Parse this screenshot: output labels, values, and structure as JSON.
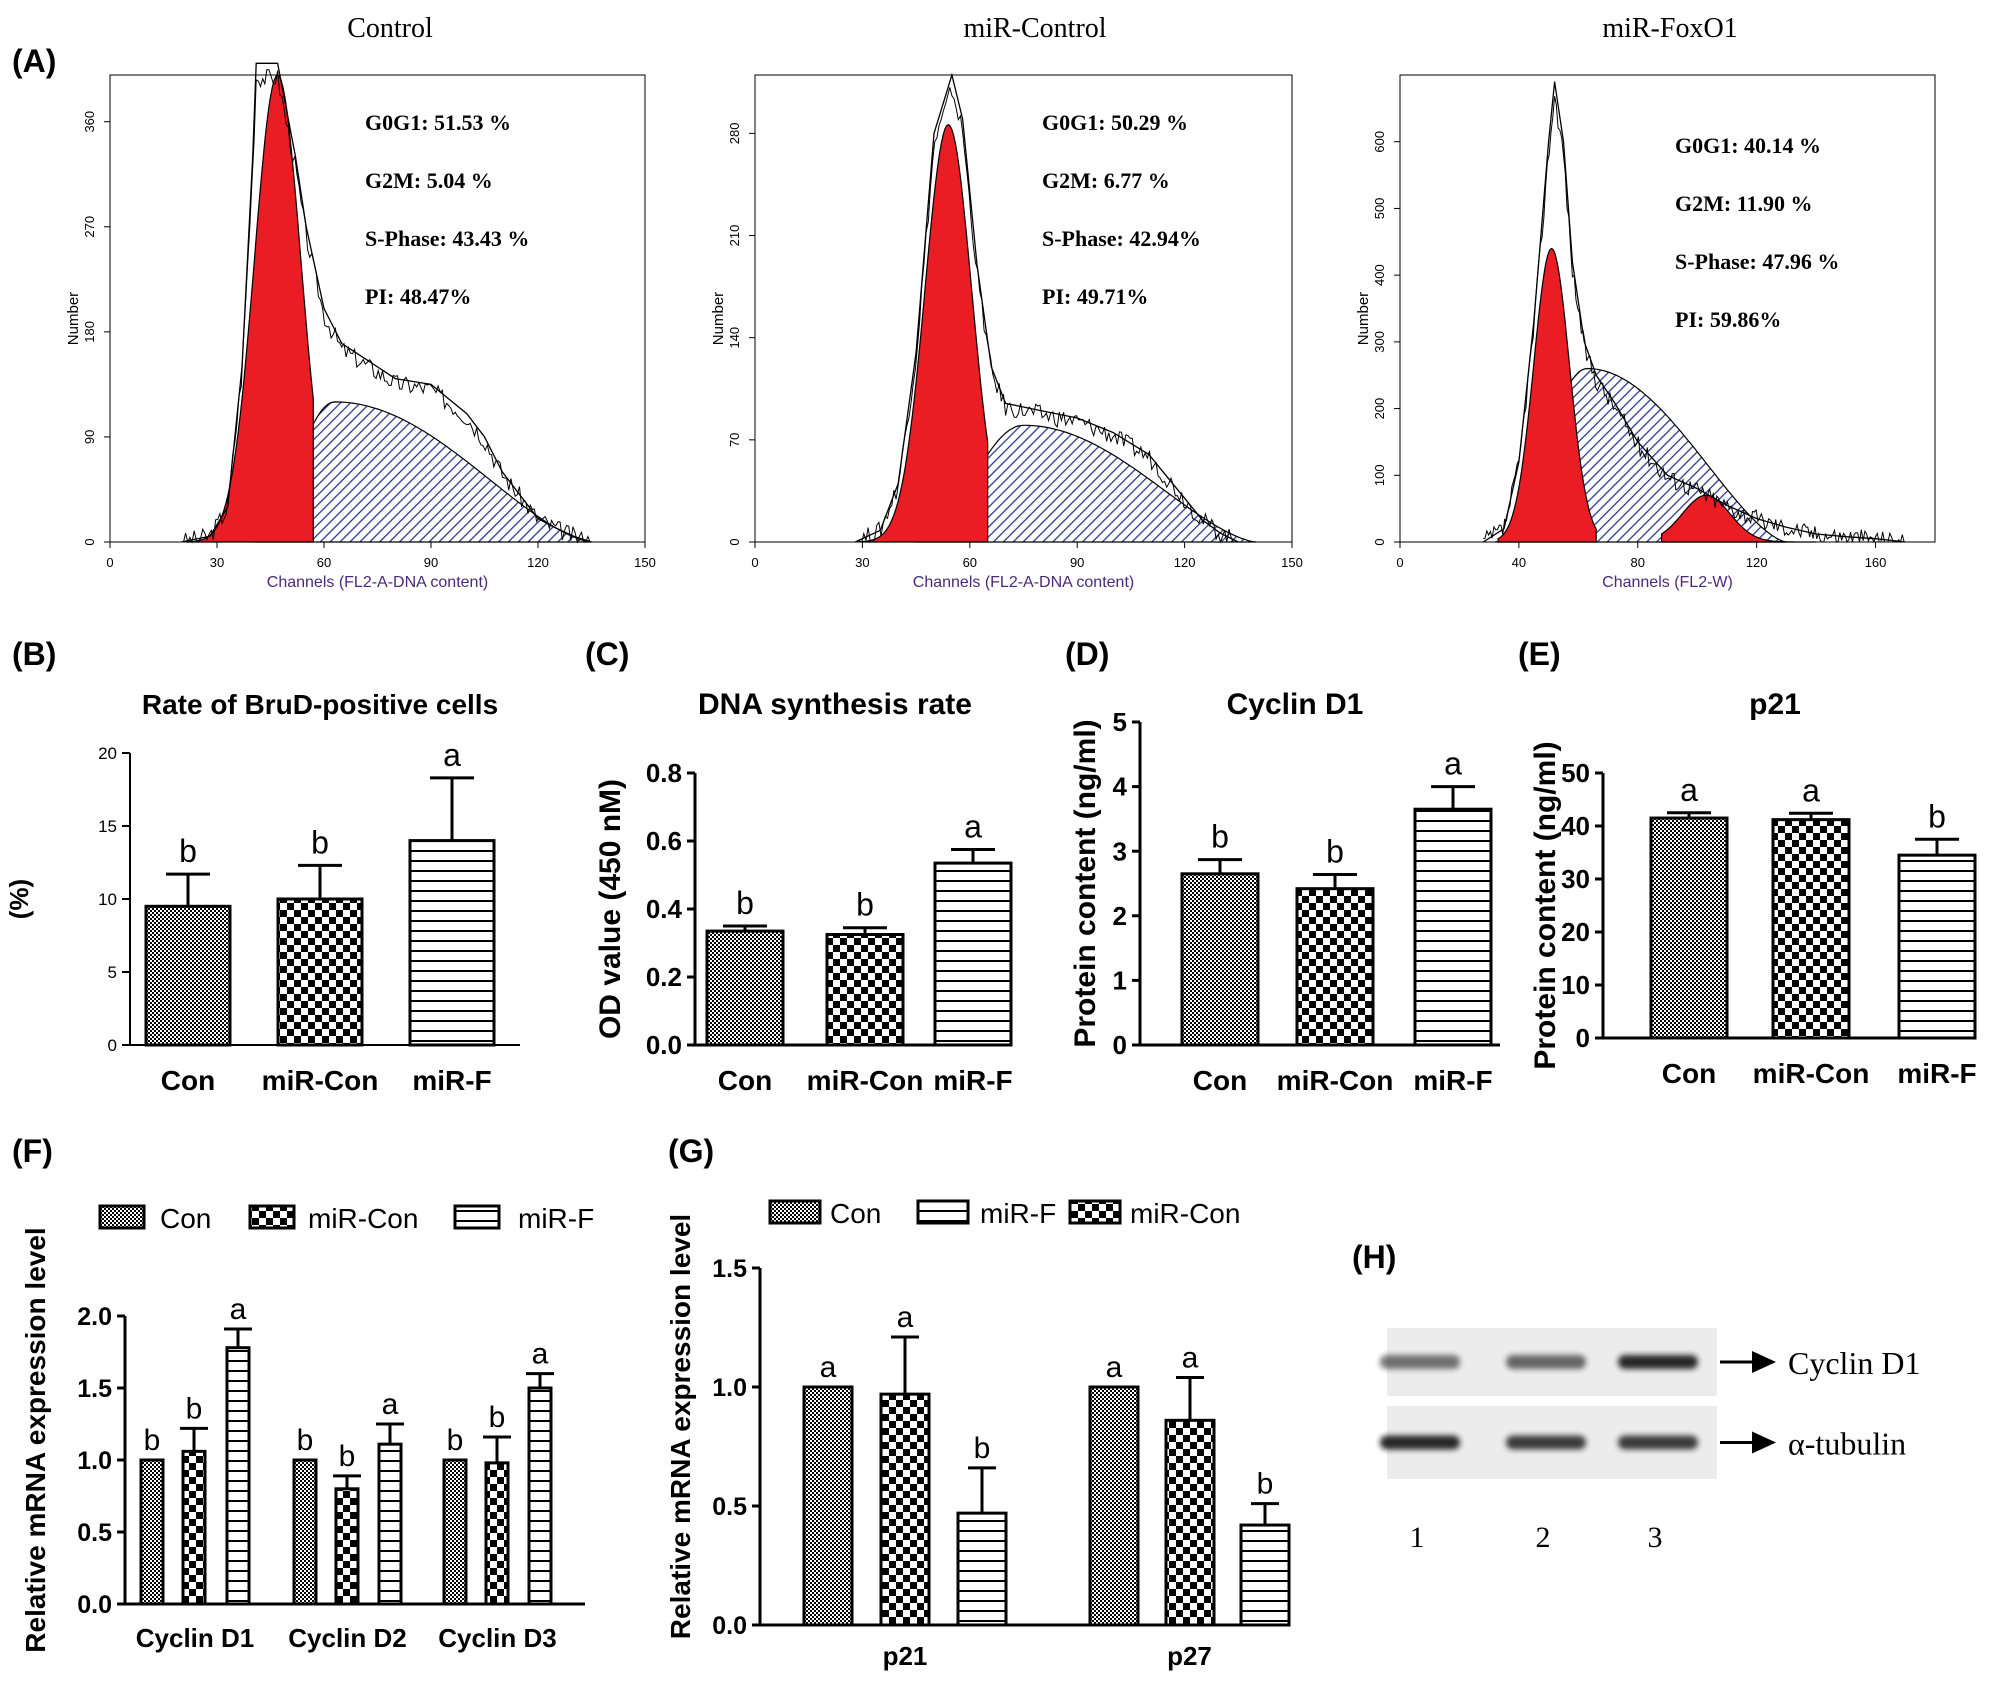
{
  "panel_letters": [
    "(A)",
    "(B)",
    "(C)",
    "(D)",
    "(E)",
    "(F)",
    "(G)",
    "(H)"
  ],
  "colors": {
    "phase_fill": "#ea1c24",
    "hatch": "#2b3a8f",
    "axis_label": "#4a2a7a",
    "ink": "#000000"
  },
  "chart_data": [
    {
      "id": "A1",
      "type": "area",
      "title": "Control",
      "xlabel": "Channels (FL2-A-DNA content)",
      "ylabel": "Number",
      "xlim": [
        0,
        150
      ],
      "ylim": [
        0,
        400
      ],
      "x_ticks": [
        "0",
        "30",
        "60",
        "90",
        "120",
        "150"
      ],
      "y_ticks": [
        "0",
        "90",
        "180",
        "270",
        "360"
      ],
      "stats": [
        "G0G1: 51.53 %",
        "G2M: 5.04 %",
        "S-Phase: 43.43 %",
        "PI: 48.47%"
      ],
      "g0g1": {
        "center": 47,
        "sigma": 6.5,
        "height": 400,
        "start": 22,
        "end": 57
      },
      "s_phase": {
        "start": 40,
        "peak": 63,
        "end": 135,
        "height": 120
      },
      "total_outline": [
        [
          20,
          0
        ],
        [
          28,
          5
        ],
        [
          33,
          30
        ],
        [
          37,
          150
        ],
        [
          40,
          330
        ],
        [
          41,
          410
        ],
        [
          47,
          410
        ],
        [
          52,
          330
        ],
        [
          55,
          270
        ],
        [
          60,
          200
        ],
        [
          65,
          170
        ],
        [
          70,
          160
        ],
        [
          80,
          140
        ],
        [
          90,
          135
        ],
        [
          100,
          110
        ],
        [
          105,
          90
        ],
        [
          110,
          60
        ],
        [
          115,
          40
        ],
        [
          120,
          20
        ],
        [
          125,
          12
        ],
        [
          130,
          5
        ],
        [
          135,
          0
        ]
      ]
    },
    {
      "id": "A2",
      "type": "area",
      "title": "miR-Control",
      "xlabel": "Channels (FL2-A-DNA content)",
      "ylabel": "Number",
      "xlim": [
        0,
        150
      ],
      "ylim": [
        0,
        320
      ],
      "x_ticks": [
        "0",
        "30",
        "60",
        "90",
        "120",
        "150"
      ],
      "y_ticks": [
        "0",
        "70",
        "140",
        "210",
        "280"
      ],
      "stats": [
        "G0G1: 50.29 %",
        "G2M: 6.77 %",
        "S-Phase: 42.94%",
        "PI: 49.71%"
      ],
      "g0g1": {
        "center": 54,
        "sigma": 6.5,
        "height": 286,
        "start": 30,
        "end": 65
      },
      "s_phase": {
        "start": 45,
        "peak": 75,
        "end": 140,
        "height": 80
      },
      "total_outline": [
        [
          28,
          0
        ],
        [
          35,
          8
        ],
        [
          40,
          40
        ],
        [
          45,
          130
        ],
        [
          50,
          280
        ],
        [
          55,
          320
        ],
        [
          58,
          290
        ],
        [
          62,
          190
        ],
        [
          66,
          120
        ],
        [
          70,
          95
        ],
        [
          80,
          90
        ],
        [
          90,
          85
        ],
        [
          100,
          75
        ],
        [
          110,
          60
        ],
        [
          115,
          45
        ],
        [
          120,
          30
        ],
        [
          125,
          15
        ],
        [
          130,
          6
        ],
        [
          135,
          0
        ]
      ]
    },
    {
      "id": "A3",
      "type": "area",
      "title": "miR-FoxO1",
      "xlabel": "Channels (FL2-W)",
      "ylabel": "Number",
      "xlim": [
        0,
        180
      ],
      "ylim": [
        0,
        700
      ],
      "x_ticks": [
        "0",
        "40",
        "80",
        "120",
        "160"
      ],
      "y_ticks": [
        "0",
        "100",
        "200",
        "300",
        "400",
        "500",
        "600"
      ],
      "stats": [
        "G0G1: 40.14 %",
        "G2M: 11.90 %",
        "S-Phase: 47.96 %",
        "PI: 59.86%"
      ],
      "g0g1": {
        "center": 51,
        "sigma": 6,
        "height": 440,
        "start": 33,
        "end": 66
      },
      "g2m": {
        "center": 103,
        "sigma": 8,
        "height": 70,
        "start": 88,
        "end": 140
      },
      "s_phase": {
        "start": 32,
        "peak": 63,
        "end": 130,
        "height": 260
      },
      "total_outline": [
        [
          28,
          0
        ],
        [
          35,
          20
        ],
        [
          40,
          120
        ],
        [
          45,
          330
        ],
        [
          50,
          600
        ],
        [
          52,
          690
        ],
        [
          55,
          600
        ],
        [
          58,
          420
        ],
        [
          62,
          300
        ],
        [
          66,
          250
        ],
        [
          72,
          210
        ],
        [
          80,
          150
        ],
        [
          90,
          100
        ],
        [
          100,
          80
        ],
        [
          110,
          55
        ],
        [
          120,
          35
        ],
        [
          130,
          22
        ],
        [
          140,
          12
        ],
        [
          150,
          8
        ],
        [
          160,
          5
        ],
        [
          170,
          0
        ]
      ]
    },
    {
      "id": "B",
      "type": "bar",
      "title": "Rate of BruD-positive cells",
      "ylabel": "(%)",
      "ylim": [
        0,
        20
      ],
      "yticks": [
        0,
        5,
        10,
        15,
        20
      ],
      "categories": [
        "Con",
        "miR-Con",
        "miR-F"
      ],
      "values": [
        9.5,
        10,
        14
      ],
      "errors": [
        2.2,
        2.3,
        4.3
      ],
      "letters": [
        "b",
        "b",
        "a"
      ],
      "patterns": [
        "fine",
        "check",
        "hlines"
      ]
    },
    {
      "id": "C",
      "type": "bar",
      "title": "DNA synthesis rate",
      "ylabel": "OD value (450 nM)",
      "ylim": [
        0,
        0.8
      ],
      "yticks": [
        0,
        0.2,
        0.4,
        0.6,
        0.8
      ],
      "ytick_labels": [
        "0.0",
        "0.2",
        "0.4",
        "0.6",
        "0.8"
      ],
      "categories": [
        "Con",
        "miR-Con",
        "miR-F"
      ],
      "values": [
        0.335,
        0.325,
        0.535
      ],
      "errors": [
        0.015,
        0.02,
        0.04
      ],
      "letters": [
        "b",
        "b",
        "a"
      ],
      "patterns": [
        "fine",
        "check",
        "hlines"
      ]
    },
    {
      "id": "D",
      "type": "bar",
      "title": "Cyclin D1",
      "ylabel": "Protein content (ng/ml)",
      "ylim": [
        0,
        5
      ],
      "yticks": [
        0,
        1,
        2,
        3,
        4,
        5
      ],
      "categories": [
        "Con",
        "miR-Con",
        "miR-F"
      ],
      "values": [
        2.65,
        2.42,
        3.65
      ],
      "errors": [
        0.22,
        0.22,
        0.35
      ],
      "letters": [
        "b",
        "b",
        "a"
      ],
      "patterns": [
        "fine",
        "check",
        "hlines"
      ]
    },
    {
      "id": "E",
      "type": "bar",
      "title": "p21",
      "ylabel": "Protein content (ng/ml)",
      "ylim": [
        0,
        50
      ],
      "yticks": [
        0,
        10,
        20,
        30,
        40,
        50
      ],
      "categories": [
        "Con",
        "miR-Con",
        "miR-F"
      ],
      "values": [
        41.5,
        41.2,
        34.5
      ],
      "errors": [
        1,
        1.2,
        3
      ],
      "letters": [
        "a",
        "a",
        "b"
      ],
      "patterns": [
        "fine",
        "check",
        "hlines"
      ]
    },
    {
      "id": "F",
      "type": "bar",
      "ylabel": "Relative mRNA expression level",
      "ylim": [
        0,
        2.0
      ],
      "yticks": [
        0,
        0.5,
        1.0,
        1.5,
        2.0
      ],
      "ytick_labels": [
        "0.0",
        "0.5",
        "1.0",
        "1.5",
        "2.0"
      ],
      "categories": [
        "Cyclin D1",
        "Cyclin D2",
        "Cyclin D3"
      ],
      "legend": [
        "Con",
        "miR-Con",
        "miR-F"
      ],
      "series": [
        {
          "name": "Con",
          "pattern": "fine",
          "values": [
            1.0,
            1.0,
            1.0
          ],
          "errors": [
            0,
            0,
            0
          ],
          "letters": [
            "b",
            "b",
            "b"
          ]
        },
        {
          "name": "miR-Con",
          "pattern": "check",
          "values": [
            1.06,
            0.8,
            0.98
          ],
          "errors": [
            0.16,
            0.09,
            0.18
          ],
          "letters": [
            "b",
            "b",
            "b"
          ]
        },
        {
          "name": "miR-F",
          "pattern": "hlines",
          "values": [
            1.78,
            1.11,
            1.5
          ],
          "errors": [
            0.13,
            0.14,
            0.1
          ],
          "letters": [
            "a",
            "a",
            "a"
          ]
        }
      ]
    },
    {
      "id": "G",
      "type": "bar",
      "ylabel": "Relative mRNA expression level",
      "ylim": [
        0,
        1.5
      ],
      "yticks": [
        0,
        0.5,
        1.0,
        1.5
      ],
      "ytick_labels": [
        "0.0",
        "0.5",
        "1.0",
        "1.5"
      ],
      "categories": [
        "p21",
        "p27"
      ],
      "legend": [
        "Con",
        "miR-F",
        "miR-Con"
      ],
      "series": [
        {
          "name": "Con",
          "pattern": "fine",
          "values": [
            1.0,
            1.0
          ],
          "errors": [
            0,
            0
          ],
          "letters": [
            "a",
            "a"
          ]
        },
        {
          "name": "miR-Con",
          "pattern": "check",
          "values": [
            0.97,
            0.86
          ],
          "errors": [
            0.24,
            0.18
          ],
          "letters": [
            "a",
            "a"
          ]
        },
        {
          "name": "miR-F",
          "pattern": "hlines",
          "values": [
            0.47,
            0.42
          ],
          "errors": [
            0.19,
            0.09
          ],
          "letters": [
            "b",
            "b"
          ]
        }
      ]
    }
  ],
  "western": {
    "bands": [
      "Cyclin D1",
      "α-tubulin"
    ],
    "lanes": [
      "1",
      "2",
      "3"
    ],
    "intensity": [
      [
        0.6,
        0.65,
        0.95
      ],
      [
        0.95,
        0.85,
        0.85
      ]
    ]
  }
}
